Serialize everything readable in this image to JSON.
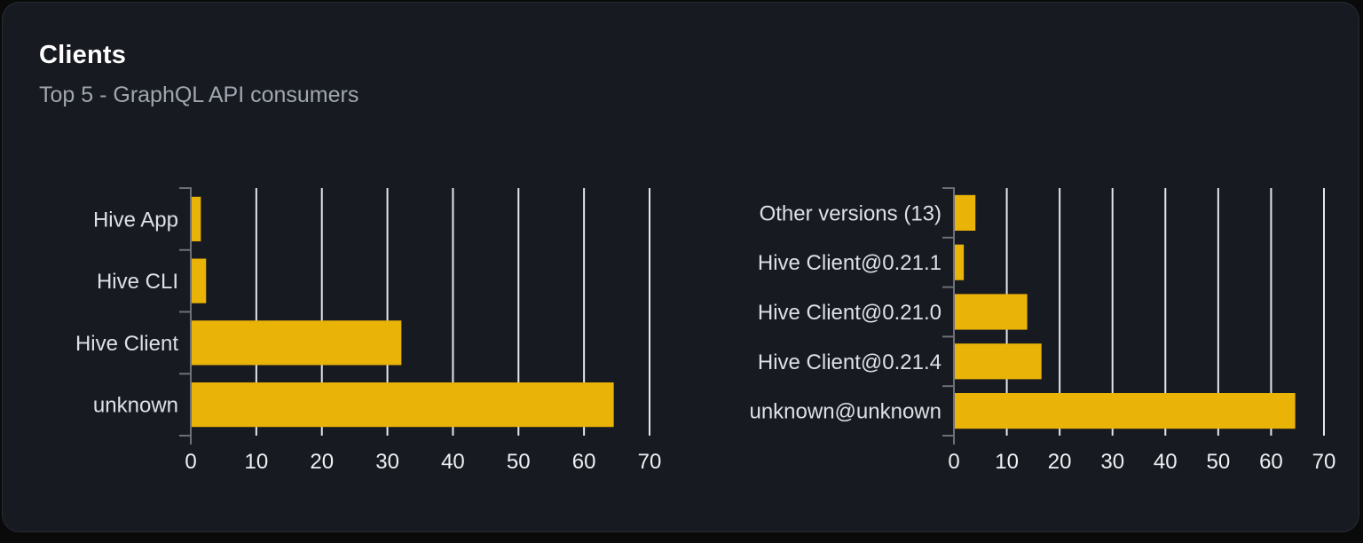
{
  "card": {
    "title": "Clients",
    "subtitle": "Top 5 - GraphQL API consumers"
  },
  "colors": {
    "page_bg": "#0a0a0a",
    "card_bg": "#171a20",
    "card_border": "#262b33",
    "title": "#ffffff",
    "subtitle": "#a1a7b0",
    "bar": "#eab308",
    "gridline": "#e3e7ee",
    "axis": "#6e7079",
    "category_label": "#dde1e6",
    "tick_label": "#eef0f3"
  },
  "chart_data": [
    {
      "type": "bar",
      "orientation": "horizontal",
      "categories": [
        "Hive App",
        "Hive CLI",
        "Hive Client",
        "unknown"
      ],
      "values": [
        1.4,
        2.2,
        32,
        64.4
      ],
      "xlim": [
        0,
        70
      ],
      "xticks": [
        0,
        10,
        20,
        30,
        40,
        50,
        60,
        70
      ],
      "grid": true,
      "legend": false,
      "bar_color": "#eab308"
    },
    {
      "type": "bar",
      "orientation": "horizontal",
      "categories": [
        "Other versions (13)",
        "Hive Client@0.21.1",
        "Hive Client@0.21.0",
        "Hive Client@0.21.4",
        "unknown@unknown"
      ],
      "values": [
        3.9,
        1.7,
        13.7,
        16.4,
        64.4
      ],
      "xlim": [
        0,
        70
      ],
      "xticks": [
        0,
        10,
        20,
        30,
        40,
        50,
        60,
        70
      ],
      "grid": true,
      "legend": false,
      "bar_color": "#eab308"
    }
  ]
}
